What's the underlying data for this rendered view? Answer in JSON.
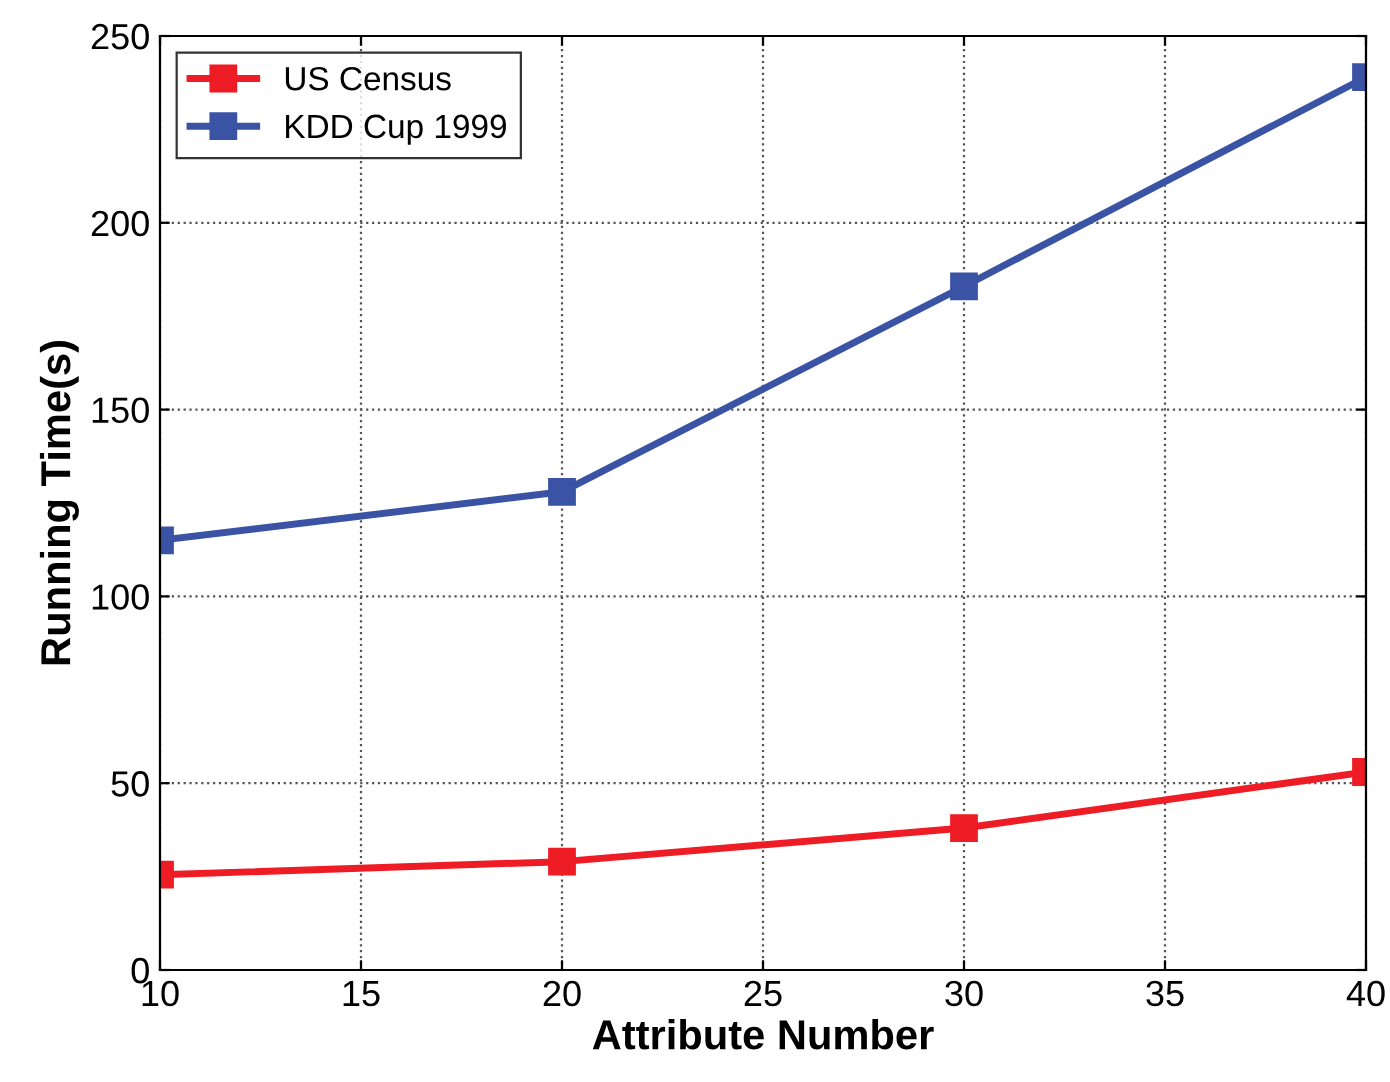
{
  "chart_data": {
    "type": "line",
    "xlabel": "Attribute Number",
    "ylabel": "Running Time(s)",
    "x": [
      10,
      20,
      30,
      40
    ],
    "series": [
      {
        "name": "US Census",
        "color": "#ee1c25",
        "values": [
          25.5,
          29,
          38,
          53
        ]
      },
      {
        "name": "KDD Cup 1999",
        "color": "#3a53a4",
        "values": [
          115,
          128,
          183,
          239
        ]
      }
    ],
    "xlim": [
      10,
      40
    ],
    "ylim": [
      0,
      250
    ],
    "xticks": [
      10,
      15,
      20,
      25,
      30,
      35,
      40
    ],
    "yticks": [
      0,
      50,
      100,
      150,
      200,
      250
    ],
    "grid": true,
    "legend": "top left",
    "marker": "square",
    "line_style": "solid"
  }
}
